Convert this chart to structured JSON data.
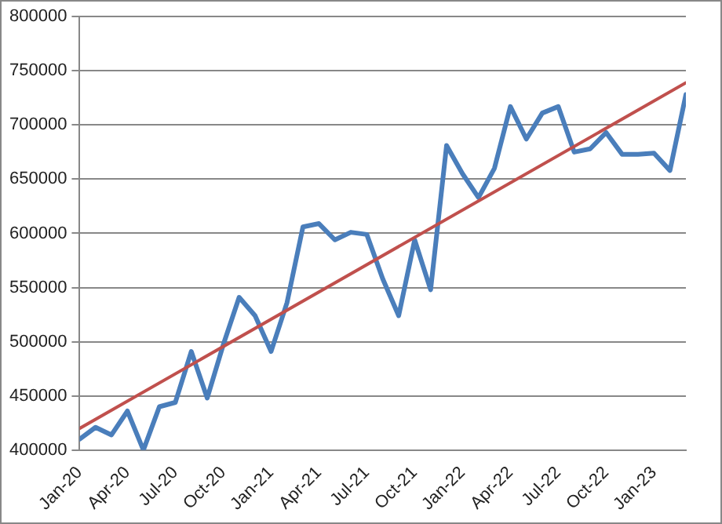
{
  "chart_data": {
    "type": "line",
    "x": [
      "2020-01",
      "2020-02",
      "2020-03",
      "2020-04",
      "2020-05",
      "2020-06",
      "2020-07",
      "2020-08",
      "2020-09",
      "2020-10",
      "2020-11",
      "2020-12",
      "2021-01",
      "2021-02",
      "2021-03",
      "2021-04",
      "2021-05",
      "2021-06",
      "2021-07",
      "2021-08",
      "2021-09",
      "2021-10",
      "2021-11",
      "2021-12",
      "2022-01",
      "2022-02",
      "2022-03",
      "2022-04",
      "2022-05",
      "2022-06",
      "2022-07",
      "2022-08",
      "2022-09",
      "2022-10",
      "2022-11",
      "2022-12",
      "2023-01",
      "2023-02",
      "2023-03"
    ],
    "series": [
      {
        "color": "#4a7ebb",
        "values": [
          410000,
          421000,
          414000,
          436000,
          400000,
          440000,
          444000,
          491000,
          448000,
          497000,
          541000,
          524000,
          491000,
          536000,
          606000,
          609000,
          594000,
          601000,
          599000,
          558000,
          524000,
          594000,
          548000,
          681000,
          655000,
          633000,
          660000,
          717000,
          687000,
          711000,
          717000,
          675000,
          678000,
          693000,
          673000,
          673000,
          674000,
          658000,
          728000
        ]
      },
      {
        "type": "line",
        "color": "#c0504d",
        "x": [
          "2020-01",
          "2023-03"
        ],
        "values": [
          420000,
          739000
        ]
      }
    ],
    "xlim": [
      "2020-01",
      "2023-03"
    ],
    "xticks": [
      {
        "value": "2020-01",
        "label": "Jan-20"
      },
      {
        "value": "2020-04",
        "label": "Apr-20"
      },
      {
        "value": "2020-07",
        "label": "Jul-20"
      },
      {
        "value": "2020-10",
        "label": "Oct-20"
      },
      {
        "value": "2021-01",
        "label": "Jan-21"
      },
      {
        "value": "2021-04",
        "label": "Apr-21"
      },
      {
        "value": "2021-07",
        "label": "Jul-21"
      },
      {
        "value": "2021-10",
        "label": "Oct-21"
      },
      {
        "value": "2022-01",
        "label": "Jan-22"
      },
      {
        "value": "2022-04",
        "label": "Apr-22"
      },
      {
        "value": "2022-07",
        "label": "Jul-22"
      },
      {
        "value": "2022-10",
        "label": "Oct-22"
      },
      {
        "value": "2023-01",
        "label": "Jan-23"
      }
    ],
    "ylim": [
      400000,
      800000
    ],
    "yticks": [
      400000,
      450000,
      500000,
      550000,
      600000,
      650000,
      700000,
      750000,
      800000
    ],
    "grid": "y",
    "legend": false,
    "marker": "none",
    "line_style": "solid"
  }
}
